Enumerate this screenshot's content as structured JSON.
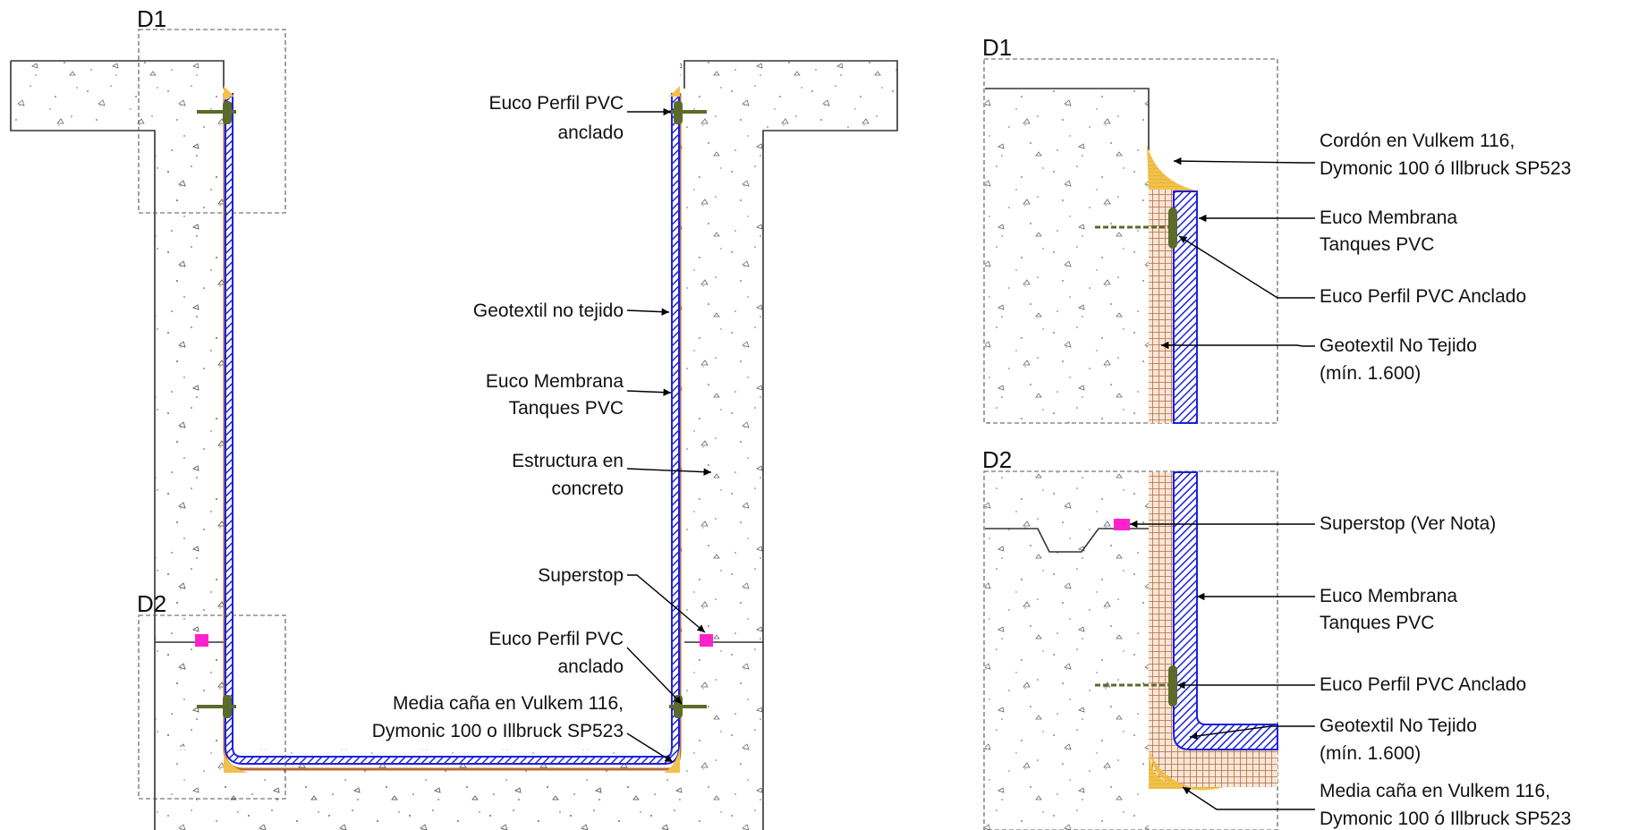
{
  "detail_tags": {
    "left_d1": "D1",
    "left_d2": "D2",
    "right_d1": "D1",
    "right_d2": "D2"
  },
  "main_labels": {
    "euco_perfil_top_l1": "Euco Perfil PVC",
    "euco_perfil_top_l2": "anclado",
    "geotextil": "Geotextil no tejido",
    "membrana_l1": "Euco Membrana",
    "membrana_l2": "Tanques PVC",
    "estructura_l1": "Estructura en",
    "estructura_l2": "concreto",
    "superstop": "Superstop",
    "euco_perfil_bot_l1": "Euco Perfil PVC",
    "euco_perfil_bot_l2": "anclado",
    "media_cana_l1": "Media caña en Vulkem 116,",
    "media_cana_l2": "Dymonic 100 o Illbruck SP523"
  },
  "d1_labels": {
    "cordon_l1": "Cordón en Vulkem 116,",
    "cordon_l2": "Dymonic 100  ó Illbruck SP523",
    "membrana_l1": "Euco Membrana",
    "membrana_l2": "Tanques PVC",
    "perfil": "Euco Perfil PVC Anclado",
    "geotextil_l1": "Geotextil No Tejido",
    "geotextil_l2": "(mín. 1.600)"
  },
  "d2_labels": {
    "superstop": "Superstop (Ver Nota)",
    "membrana_l1": "Euco Membrana",
    "membrana_l2": "Tanques PVC",
    "perfil": "Euco Perfil PVC Anclado",
    "geotextil_l1": "Geotextil No Tejido",
    "geotextil_l2": "(mín. 1.600)",
    "media_cana_l1": "Media caña en Vulkem 116,",
    "media_cana_l2": "Dymonic 100 ó Illbruck SP523"
  },
  "colors": {
    "membrane": "#1a22e0",
    "geotextile": "#b86a3a",
    "sealant": "#f2c14a",
    "anchor_profile": "#5c6a2a",
    "superstop": "#ff22cc",
    "concrete_outline": "#333333"
  }
}
